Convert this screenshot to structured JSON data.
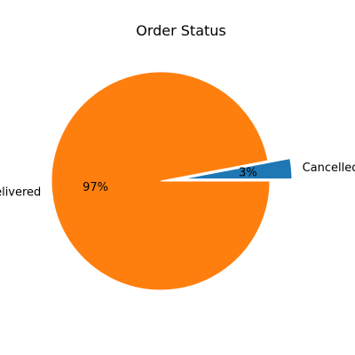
{
  "chart_data": {
    "type": "pie",
    "title": "Order Status",
    "slices": [
      {
        "label": "Cancelled",
        "value": 3,
        "pct_label": "3%",
        "color": "#1f77b4",
        "explode": true
      },
      {
        "label": "Delivered",
        "value": 97,
        "pct_label": "97%",
        "color": "#ff7f0e",
        "explode": false
      }
    ],
    "start_angle_deg": 0,
    "legend": "none"
  }
}
